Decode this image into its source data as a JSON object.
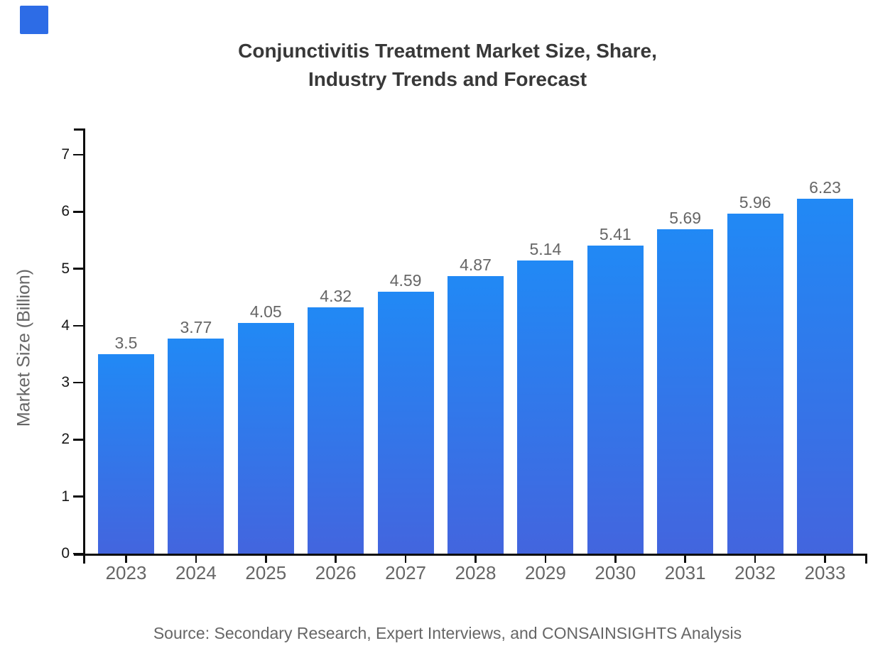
{
  "header": {
    "title_line1": "Conjunctivitis Treatment Market Size, Share,",
    "title_line2": "Industry Trends and Forecast"
  },
  "footer": {
    "source": "Source: Secondary Research, Expert Interviews, and CONSAINSIGHTS Analysis"
  },
  "colors": {
    "bar_gradient_top": "#2189f5",
    "bar_gradient_bottom": "#4365de",
    "title_text": "#383838",
    "muted_text": "#666666",
    "y_tick_text": "#161616",
    "axis_line": "#0d0d0d",
    "logo_square": "#2d6ce6",
    "background": "#ffffff"
  },
  "chart_data": {
    "type": "bar",
    "title": "Conjunctivitis Treatment Market Size, Share, Industry Trends and Forecast",
    "categories": [
      "2023",
      "2024",
      "2025",
      "2026",
      "2027",
      "2028",
      "2029",
      "2030",
      "2031",
      "2032",
      "2033"
    ],
    "values": [
      3.5,
      3.77,
      4.05,
      4.32,
      4.59,
      4.87,
      5.14,
      5.41,
      5.69,
      5.96,
      6.23
    ],
    "bar_labels": [
      "3.5",
      "3.77",
      "4.05",
      "4.32",
      "4.59",
      "4.87",
      "5.14",
      "5.41",
      "5.69",
      "5.96",
      "6.23"
    ],
    "xlabel": "",
    "ylabel": "Market Size (Billion)",
    "yticks": [
      0,
      1,
      2,
      3,
      4,
      5,
      6,
      7
    ],
    "ylim": [
      0,
      7.5
    ],
    "grid": false,
    "legend": false,
    "data_labels": true,
    "bar_fill": "vertical gradient, bright blue top to indigo blue bottom"
  }
}
